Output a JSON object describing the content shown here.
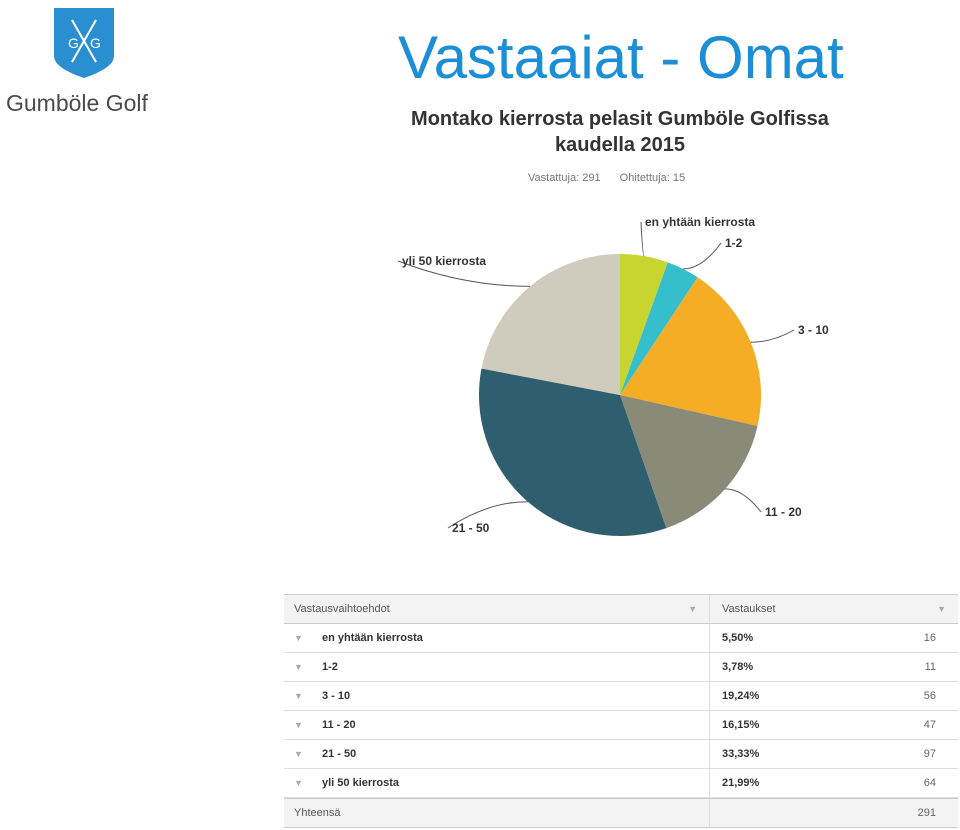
{
  "logo": {
    "initials_left": "G",
    "initials_right": "G",
    "name": "Gumböle Golf"
  },
  "slide_title": "Vastaaiat - Omat",
  "chart_data": {
    "type": "pie",
    "title": "Montako kierrosta pelasit Gumböle Golfissa kaudella 2015",
    "answered_label": "Vastattuja: 291",
    "skipped_label": "Ohitettuja: 15",
    "categories": [
      "en yhtään kierrosta",
      "1-2",
      "3 - 10",
      "11 - 20",
      "21 - 50",
      "yli 50 kierrosta"
    ],
    "values": [
      16,
      11,
      56,
      47,
      97,
      64
    ],
    "colors": [
      "#c8d42f",
      "#35bfcc",
      "#f4ad24",
      "#8a8a78",
      "#2f5e6e",
      "#d0ccbd"
    ]
  },
  "table": {
    "col1_header": "Vastausvaihtoehdot",
    "col2_header": "Vastaukset",
    "rows": [
      {
        "answer": "en yhtään kierrosta",
        "percent": "5,50%",
        "count": "16"
      },
      {
        "answer": "1-2",
        "percent": "3,78%",
        "count": "11"
      },
      {
        "answer": "3 - 10",
        "percent": "19,24%",
        "count": "56"
      },
      {
        "answer": "11 - 20",
        "percent": "16,15%",
        "count": "47"
      },
      {
        "answer": "21 - 50",
        "percent": "33,33%",
        "count": "97"
      },
      {
        "answer": "yli 50 kierrosta",
        "percent": "21,99%",
        "count": "64"
      }
    ],
    "total_label": "Yhteensä",
    "total_value": "291"
  }
}
